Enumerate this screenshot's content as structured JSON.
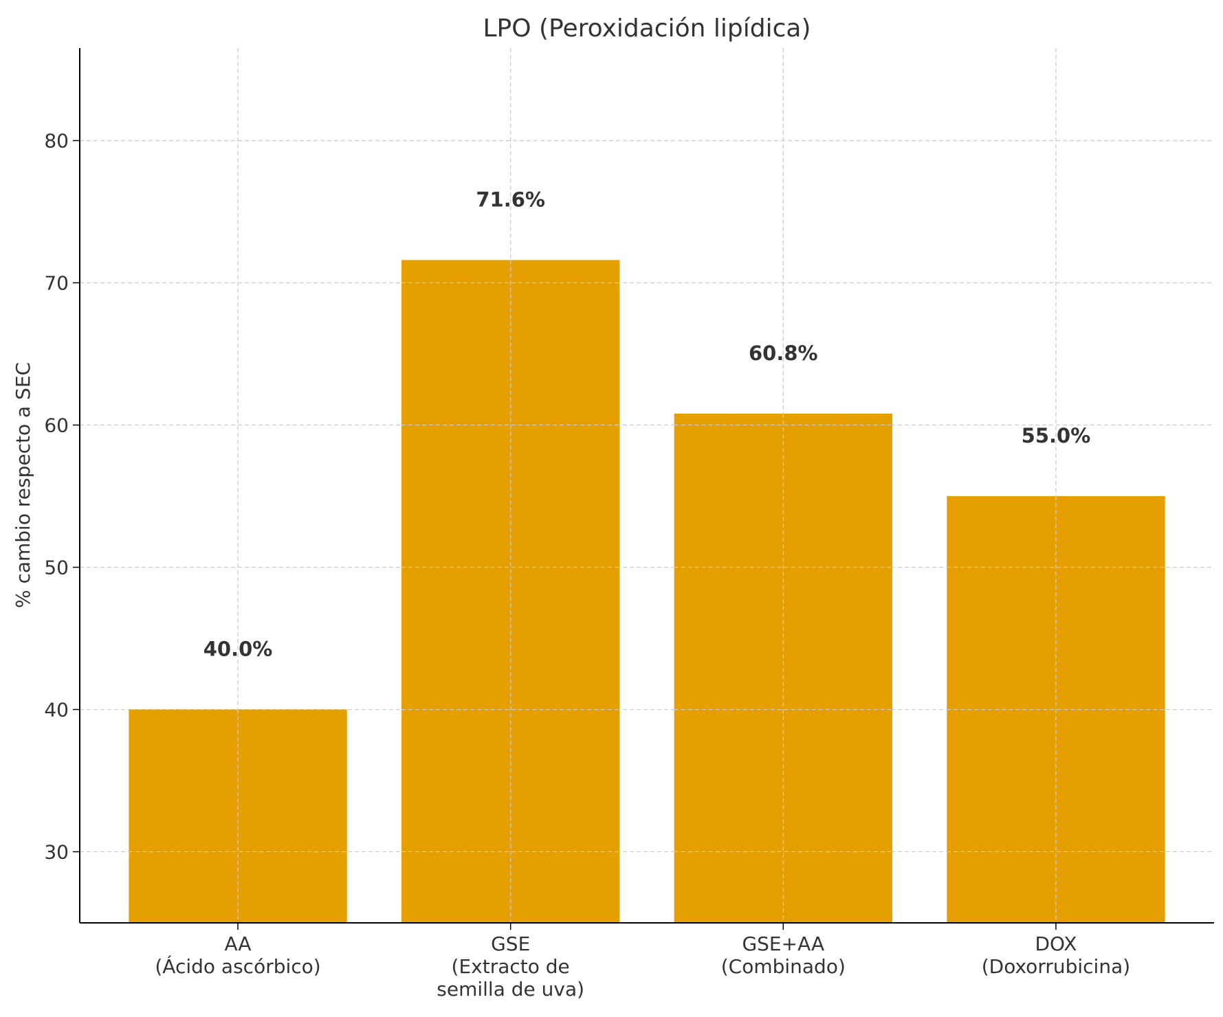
{
  "chart_data": {
    "type": "bar",
    "title": "LPO (Peroxidación lipídica)",
    "xlabel": "",
    "ylabel": "% cambio respecto a SEC",
    "categories": [
      [
        "AA",
        "(Ácido ascórbico)"
      ],
      [
        "GSE",
        "(Extracto de",
        "semilla de uva)"
      ],
      [
        "GSE+AA",
        "(Combinado)"
      ],
      [
        "DOX",
        "(Doxorrubicina)"
      ]
    ],
    "values": [
      40.0,
      71.6,
      60.8,
      55.0
    ],
    "value_labels": [
      "40.0%",
      "71.6%",
      "60.8%",
      "55.0%"
    ],
    "ylim": [
      25,
      86.5
    ],
    "yticks": [
      30,
      40,
      50,
      60,
      70,
      80
    ],
    "grid": true,
    "bar_color": "#E69F00",
    "text_color": "#333333",
    "grid_color": "#cccccc"
  }
}
